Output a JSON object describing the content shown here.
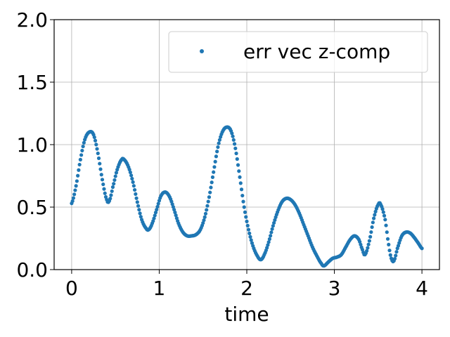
{
  "chart_data": {
    "type": "scatter",
    "xlabel": "time",
    "ylabel": "",
    "title": "",
    "xlim": [
      -0.2,
      4.2
    ],
    "ylim": [
      0,
      2
    ],
    "xticks": [
      0,
      1,
      2,
      3,
      4
    ],
    "xtick_labels": [
      "0",
      "1",
      "2",
      "3",
      "4"
    ],
    "yticks": [
      0,
      0.5,
      1,
      1.5,
      2
    ],
    "ytick_labels": [
      "0.0",
      "0.5",
      "1.0",
      "1.5",
      "2.0"
    ],
    "grid": true,
    "legend_position": "top-right",
    "series": [
      {
        "name": "err vec z-comp",
        "color": "#1f77b4",
        "marker": "dot",
        "anchor_points": [
          [
            0.0,
            0.53
          ],
          [
            0.05,
            0.67
          ],
          [
            0.1,
            0.88
          ],
          [
            0.15,
            1.04
          ],
          [
            0.2,
            1.1
          ],
          [
            0.25,
            1.08
          ],
          [
            0.3,
            0.93
          ],
          [
            0.35,
            0.72
          ],
          [
            0.4,
            0.56
          ],
          [
            0.43,
            0.55
          ],
          [
            0.47,
            0.66
          ],
          [
            0.52,
            0.8
          ],
          [
            0.57,
            0.88
          ],
          [
            0.6,
            0.88
          ],
          [
            0.65,
            0.82
          ],
          [
            0.7,
            0.7
          ],
          [
            0.75,
            0.54
          ],
          [
            0.8,
            0.4
          ],
          [
            0.85,
            0.33
          ],
          [
            0.88,
            0.32
          ],
          [
            0.92,
            0.37
          ],
          [
            0.97,
            0.48
          ],
          [
            1.02,
            0.59
          ],
          [
            1.07,
            0.62
          ],
          [
            1.12,
            0.58
          ],
          [
            1.17,
            0.48
          ],
          [
            1.22,
            0.37
          ],
          [
            1.27,
            0.3
          ],
          [
            1.32,
            0.27
          ],
          [
            1.37,
            0.27
          ],
          [
            1.42,
            0.28
          ],
          [
            1.47,
            0.32
          ],
          [
            1.52,
            0.42
          ],
          [
            1.57,
            0.58
          ],
          [
            1.62,
            0.78
          ],
          [
            1.67,
            0.98
          ],
          [
            1.72,
            1.1
          ],
          [
            1.77,
            1.14
          ],
          [
            1.82,
            1.11
          ],
          [
            1.87,
            0.97
          ],
          [
            1.92,
            0.74
          ],
          [
            1.97,
            0.5
          ],
          [
            2.02,
            0.32
          ],
          [
            2.07,
            0.19
          ],
          [
            2.12,
            0.11
          ],
          [
            2.16,
            0.08
          ],
          [
            2.2,
            0.12
          ],
          [
            2.25,
            0.22
          ],
          [
            2.3,
            0.35
          ],
          [
            2.35,
            0.46
          ],
          [
            2.4,
            0.54
          ],
          [
            2.45,
            0.57
          ],
          [
            2.5,
            0.56
          ],
          [
            2.55,
            0.52
          ],
          [
            2.6,
            0.45
          ],
          [
            2.65,
            0.36
          ],
          [
            2.7,
            0.27
          ],
          [
            2.75,
            0.18
          ],
          [
            2.8,
            0.11
          ],
          [
            2.85,
            0.05
          ],
          [
            2.88,
            0.03
          ],
          [
            2.93,
            0.06
          ],
          [
            2.98,
            0.09
          ],
          [
            3.03,
            0.1
          ],
          [
            3.08,
            0.12
          ],
          [
            3.13,
            0.18
          ],
          [
            3.18,
            0.24
          ],
          [
            3.23,
            0.27
          ],
          [
            3.28,
            0.24
          ],
          [
            3.32,
            0.16
          ],
          [
            3.35,
            0.12
          ],
          [
            3.4,
            0.23
          ],
          [
            3.45,
            0.41
          ],
          [
            3.5,
            0.52
          ],
          [
            3.53,
            0.52
          ],
          [
            3.58,
            0.4
          ],
          [
            3.62,
            0.2
          ],
          [
            3.65,
            0.09
          ],
          [
            3.68,
            0.07
          ],
          [
            3.72,
            0.17
          ],
          [
            3.77,
            0.27
          ],
          [
            3.82,
            0.3
          ],
          [
            3.87,
            0.29
          ],
          [
            3.92,
            0.25
          ],
          [
            3.96,
            0.21
          ],
          [
            4.0,
            0.17
          ]
        ]
      }
    ]
  }
}
